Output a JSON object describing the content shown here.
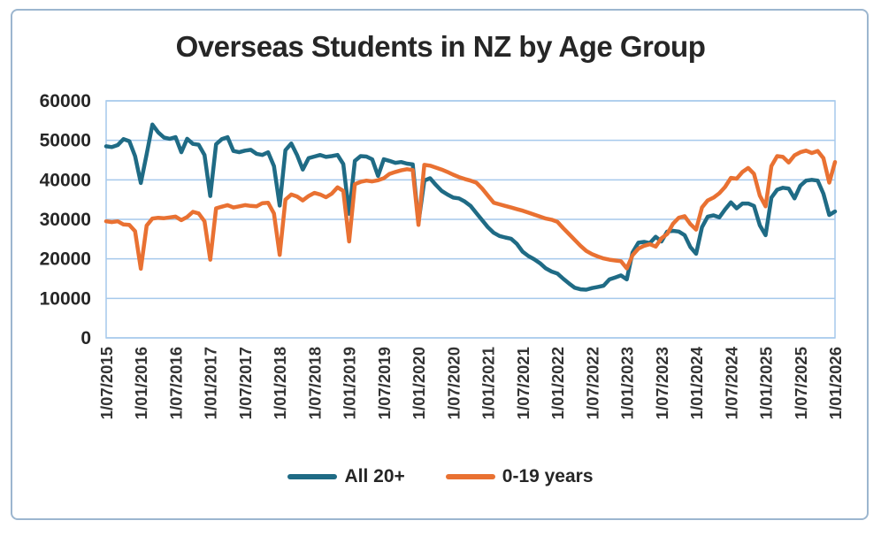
{
  "figure": {
    "title": "Overseas Students in NZ by Age Group"
  },
  "legend": {
    "items": [
      {
        "label": "All 20+",
        "color": "#1F6B85"
      },
      {
        "label": "0-19 years",
        "color": "#E97132"
      }
    ]
  },
  "axis_colors": {
    "gridline": "#A6C9EC",
    "tick_text": "#262626"
  },
  "chart_data": {
    "type": "line",
    "title": "Overseas Students in NZ by Age Group",
    "x_start": "1/07/2015",
    "x_frequency": "monthly",
    "x_tick_every": 6,
    "x_tick_labels": [
      "1/07/2015",
      "1/01/2016",
      "1/07/2016",
      "1/01/2017",
      "1/07/2017",
      "1/01/2018",
      "1/07/2018",
      "1/01/2019",
      "1/07/2019",
      "1/01/2020",
      "1/07/2020",
      "1/01/2021",
      "1/07/2021",
      "1/01/2022",
      "1/07/2022",
      "1/01/2023",
      "1/07/2023",
      "1/01/2024",
      "1/07/2024",
      "1/01/2025",
      "1/07/2025",
      "1/01/2026"
    ],
    "ylim": [
      0,
      60000
    ],
    "y_ticks": [
      0,
      10000,
      20000,
      30000,
      40000,
      50000,
      60000
    ],
    "grid": "horizontal",
    "legend_position": "bottom",
    "series": [
      {
        "name": "All 20+",
        "color": "#1F6B85",
        "values": [
          48500,
          48300,
          48800,
          50300,
          49800,
          46000,
          39200,
          46500,
          54000,
          52000,
          50700,
          50400,
          50800,
          47000,
          50400,
          49100,
          48900,
          46300,
          35900,
          49000,
          50300,
          50800,
          47300,
          47000,
          47400,
          47600,
          46600,
          46300,
          47000,
          43500,
          33500,
          47500,
          49200,
          46300,
          42600,
          45500,
          45900,
          46300,
          45800,
          46000,
          46300,
          44000,
          31400,
          44800,
          46000,
          45900,
          45200,
          41000,
          45200,
          44800,
          44300,
          44500,
          44100,
          43900,
          29200,
          39800,
          40400,
          38700,
          37200,
          36300,
          35500,
          35300,
          34500,
          33400,
          31600,
          29800,
          28000,
          26600,
          25800,
          25400,
          25100,
          23800,
          21800,
          20700,
          19900,
          18900,
          17600,
          16800,
          16300,
          15000,
          13800,
          12700,
          12300,
          12200,
          12600,
          12900,
          13200,
          14800,
          15300,
          15800,
          14800,
          21600,
          24100,
          24300,
          24000,
          25600,
          24400,
          26900,
          27100,
          26900,
          26000,
          23000,
          21300,
          28000,
          30700,
          31000,
          30500,
          32500,
          34300,
          32800,
          34000,
          34000,
          33400,
          28500,
          26000,
          35500,
          37500,
          38000,
          37800,
          35300,
          38500,
          39800,
          40000,
          39800,
          36500,
          31100,
          32000
        ]
      },
      {
        "name": "0-19 years",
        "color": "#E97132",
        "values": [
          29500,
          29300,
          29500,
          28700,
          28600,
          27000,
          17500,
          28400,
          30200,
          30400,
          30300,
          30500,
          30700,
          29800,
          30600,
          31900,
          31500,
          29500,
          19800,
          32800,
          33200,
          33600,
          33000,
          33300,
          33600,
          33400,
          33300,
          34100,
          34200,
          31500,
          21000,
          35000,
          36300,
          35800,
          34800,
          35900,
          36700,
          36300,
          35600,
          36500,
          38100,
          37200,
          24400,
          38900,
          39500,
          39800,
          39600,
          39900,
          40400,
          41500,
          42000,
          42400,
          42700,
          42500,
          28600,
          43800,
          43600,
          43100,
          42600,
          42000,
          41300,
          40700,
          40200,
          39800,
          39300,
          37800,
          36000,
          34200,
          33800,
          33400,
          33000,
          32600,
          32200,
          31700,
          31200,
          30700,
          30200,
          29900,
          29400,
          27800,
          26300,
          24800,
          23300,
          22000,
          21200,
          20600,
          20100,
          19800,
          19600,
          19400,
          17600,
          20900,
          22600,
          23300,
          23700,
          23100,
          25200,
          26300,
          28900,
          30400,
          30800,
          28800,
          27400,
          33000,
          34800,
          35500,
          36600,
          38200,
          40500,
          40300,
          42000,
          43000,
          41500,
          36000,
          33300,
          43500,
          46000,
          45800,
          44400,
          46200,
          47000,
          47400,
          46800,
          47300,
          45500,
          39300,
          44500
        ]
      }
    ]
  }
}
